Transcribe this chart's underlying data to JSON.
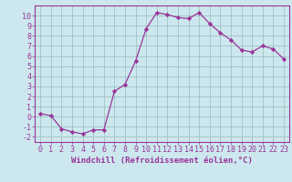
{
  "x": [
    0,
    1,
    2,
    3,
    4,
    5,
    6,
    7,
    8,
    9,
    10,
    11,
    12,
    13,
    14,
    15,
    16,
    17,
    18,
    19,
    20,
    21,
    22,
    23
  ],
  "y": [
    0.3,
    0.1,
    -1.2,
    -1.5,
    -1.7,
    -1.3,
    -1.3,
    2.5,
    3.2,
    5.5,
    8.7,
    10.3,
    10.1,
    9.8,
    9.7,
    10.3,
    9.2,
    8.3,
    7.6,
    6.6,
    6.4,
    7.0,
    6.7,
    5.7
  ],
  "xlabel": "Windchill (Refroidissement éolien,°C)",
  "xlim": [
    -0.5,
    23.5
  ],
  "ylim": [
    -2.5,
    11
  ],
  "yticks": [
    -2,
    -1,
    0,
    1,
    2,
    3,
    4,
    5,
    6,
    7,
    8,
    9,
    10
  ],
  "xticks": [
    0,
    1,
    2,
    3,
    4,
    5,
    6,
    7,
    8,
    9,
    10,
    11,
    12,
    13,
    14,
    15,
    16,
    17,
    18,
    19,
    20,
    21,
    22,
    23
  ],
  "line_color": "#993399",
  "marker": "D",
  "marker_size": 2.2,
  "bg_color": "#cce8ee",
  "grid_color": "#99bbbb",
  "tick_color": "#993399",
  "label_color": "#993399",
  "tick_fontsize": 6.0,
  "xlabel_fontsize": 6.5
}
